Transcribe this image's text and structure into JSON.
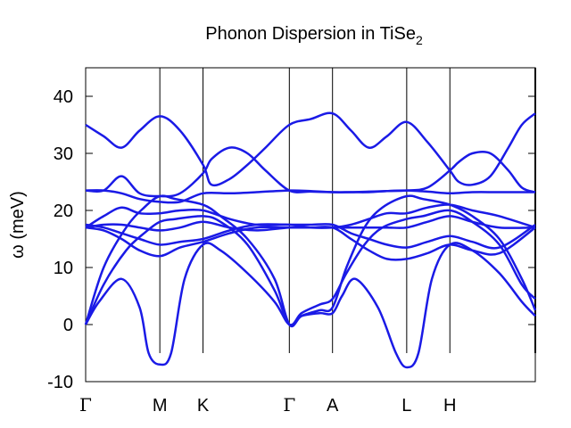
{
  "chart_data": {
    "type": "line",
    "title": "Phonon Dispersion in TiSe",
    "title_subscript": "2",
    "ylabel": "ω (meV)",
    "ylim": [
      -10,
      45
    ],
    "yticks": [
      -10,
      0,
      10,
      20,
      30,
      40
    ],
    "yticks_labels": [
      "-10",
      "0",
      "10",
      "20",
      "30",
      "40"
    ],
    "xlim": [
      0,
      100
    ],
    "path_points": [
      {
        "label": "Γ",
        "x": 0,
        "greek": true
      },
      {
        "label": "M",
        "x": 16.5,
        "greek": false
      },
      {
        "label": "K",
        "x": 26.1,
        "greek": false
      },
      {
        "label": "Γ",
        "x": 45.3,
        "greek": true
      },
      {
        "label": "A",
        "x": 54.9,
        "greek": false
      },
      {
        "label": "L",
        "x": 71.4,
        "greek": false
      },
      {
        "label": "H",
        "x": 81.0,
        "greek": false
      },
      {
        "label": "",
        "x": 100,
        "greek": false
      }
    ],
    "grid": false,
    "legend": "none",
    "line_color": "#1a1ae6",
    "series": [
      {
        "x": [
          0,
          3,
          8,
          12,
          14,
          16.5,
          19,
          22,
          26.1,
          30,
          36,
          42,
          45.3,
          48,
          52,
          54.9,
          57,
          60,
          65,
          69,
          71.4,
          74,
          77,
          81,
          86,
          92,
          97,
          100
        ],
        "y": [
          0,
          4,
          8,
          3,
          -5,
          -7,
          -5,
          8,
          14,
          13,
          9,
          4,
          0,
          1.5,
          2,
          2,
          5,
          8,
          3,
          -5,
          -7.5,
          -5,
          8,
          14,
          13,
          9,
          4,
          1.5
        ]
      },
      {
        "x": [
          0,
          4,
          9,
          13,
          16.5,
          20,
          26.1,
          30,
          36,
          42,
          45.3,
          48,
          52,
          54.9,
          58,
          62,
          66,
          71.4,
          75,
          81,
          86,
          92,
          97,
          100
        ],
        "y": [
          0,
          7,
          13,
          16,
          18,
          18.5,
          19,
          18,
          14,
          6,
          0,
          2,
          3.5,
          4.5,
          9,
          14,
          17,
          18.5,
          19,
          20,
          18,
          14,
          7,
          4.5
        ]
      },
      {
        "x": [
          0,
          4,
          9,
          13,
          16.5,
          20,
          26.1,
          30,
          36,
          42,
          45.3,
          48,
          52,
          54.9,
          58,
          62,
          66,
          71.4,
          75,
          81,
          86,
          92,
          97,
          100
        ],
        "y": [
          0,
          10,
          17,
          20.5,
          22.5,
          22,
          21,
          19,
          15,
          8,
          0,
          1.5,
          2.5,
          3,
          10,
          17,
          20.5,
          22.5,
          22,
          21,
          19,
          15,
          8,
          2.5
        ]
      },
      {
        "x": [
          0,
          4,
          8,
          12,
          16.5,
          21,
          26.1,
          32,
          38,
          45.3,
          50,
          54.9,
          59,
          63,
          67,
          71.4,
          76,
          81,
          86,
          92,
          100
        ],
        "y": [
          17,
          16.5,
          15,
          13,
          12,
          13.5,
          14.5,
          16,
          17,
          17,
          17,
          17,
          15,
          13,
          11.5,
          11.5,
          12.5,
          14,
          13,
          12.5,
          17
        ]
      },
      {
        "x": [
          0,
          4,
          8,
          12,
          16.5,
          21,
          26.1,
          32,
          38,
          45.3,
          50,
          54.9,
          59,
          63,
          67,
          71.4,
          76,
          81,
          86,
          92,
          100
        ],
        "y": [
          17.5,
          17,
          16,
          15,
          14,
          14.5,
          15,
          16.5,
          17.5,
          17.5,
          17.5,
          17.5,
          16,
          15,
          14,
          13.5,
          14.5,
          15.5,
          14.5,
          13.5,
          17.5
        ]
      },
      {
        "x": [
          0,
          4,
          8,
          12,
          16.5,
          21,
          26.1,
          32,
          38,
          45.3,
          50,
          54.9,
          59,
          63,
          67,
          71.4,
          76,
          81,
          86,
          92,
          100
        ],
        "y": [
          17,
          17.5,
          17.5,
          17,
          16.5,
          17,
          18,
          17,
          16.5,
          17,
          17,
          17,
          17,
          17,
          17,
          17,
          18,
          19,
          18,
          17,
          17
        ]
      },
      {
        "x": [
          0,
          4,
          8,
          12,
          16.5,
          21,
          26.1,
          32,
          38,
          45.3,
          50,
          54.9,
          59,
          63,
          67,
          71.4,
          76,
          81,
          86,
          92,
          100
        ],
        "y": [
          17,
          19,
          20.5,
          19.5,
          19.5,
          20,
          20,
          18.5,
          17.5,
          17.5,
          17,
          17,
          17.5,
          18.5,
          19.5,
          19.5,
          20.5,
          21,
          20,
          19,
          17
        ]
      },
      {
        "x": [
          0,
          4,
          8,
          12,
          16.5,
          21,
          26.1,
          32,
          38,
          45.3,
          50,
          54.9,
          59,
          63,
          67,
          71.4,
          76,
          81,
          86,
          92,
          100
        ],
        "y": [
          23.5,
          23.5,
          23,
          22,
          21.5,
          21.5,
          23,
          23,
          23.2,
          23.5,
          23.4,
          23.2,
          23.2,
          23.2,
          23.4,
          23.5,
          23.3,
          23,
          23.2,
          23.2,
          23.2
        ]
      },
      {
        "x": [
          0,
          4,
          8,
          12,
          16.5,
          21,
          26.1,
          28,
          32,
          36,
          40,
          45.3,
          50,
          54.9,
          59,
          63,
          67,
          71.4,
          76,
          81,
          83,
          86,
          90,
          94,
          97,
          100
        ],
        "y": [
          35,
          33,
          31,
          34,
          36.5,
          34,
          28,
          24.5,
          25.5,
          28,
          31,
          35,
          36,
          37,
          34,
          31,
          33,
          35.5,
          32,
          27,
          25,
          24.5,
          26,
          31,
          35,
          37
        ]
      },
      {
        "x": [
          0,
          4,
          8,
          12,
          16.5,
          21,
          26.1,
          28,
          32,
          36,
          40,
          45.3,
          50,
          54.9,
          59,
          63,
          67,
          71.4,
          76,
          81,
          83,
          86,
          90,
          94,
          97,
          100
        ],
        "y": [
          23.5,
          23.5,
          26,
          23,
          22.5,
          23,
          26.5,
          29,
          31,
          30,
          27,
          23.5,
          23.3,
          23.2,
          23.2,
          23.3,
          23.4,
          23.5,
          24,
          27,
          28.5,
          30,
          30,
          27,
          24,
          23.2
        ]
      }
    ]
  }
}
